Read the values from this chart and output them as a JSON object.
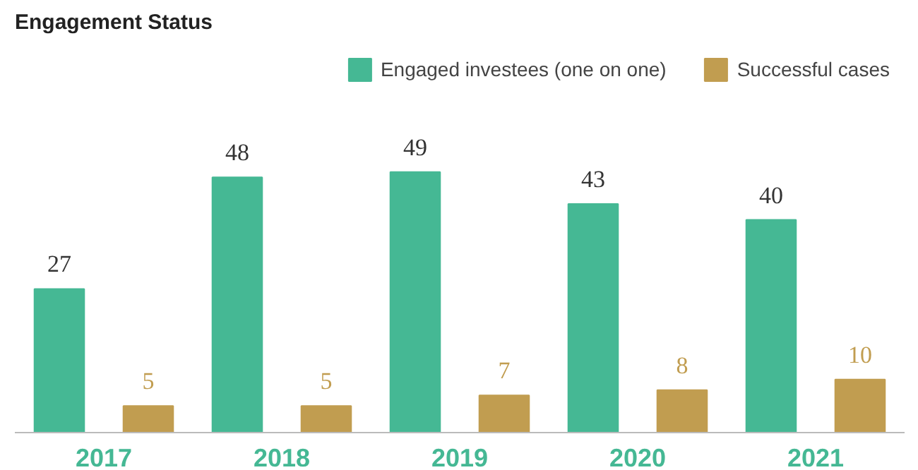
{
  "chart_data": {
    "type": "bar",
    "title": "Engagement Status",
    "categories": [
      "2017",
      "2018",
      "2019",
      "2020",
      "2021"
    ],
    "series": [
      {
        "name": "Engaged investees (one on one)",
        "color": "#45b894",
        "values": [
          27,
          48,
          49,
          43,
          40
        ]
      },
      {
        "name": "Successful cases",
        "color": "#c19d50",
        "values": [
          5,
          5,
          7,
          8,
          10
        ]
      }
    ],
    "data_labels": true,
    "legend": "top right",
    "grid": false
  }
}
